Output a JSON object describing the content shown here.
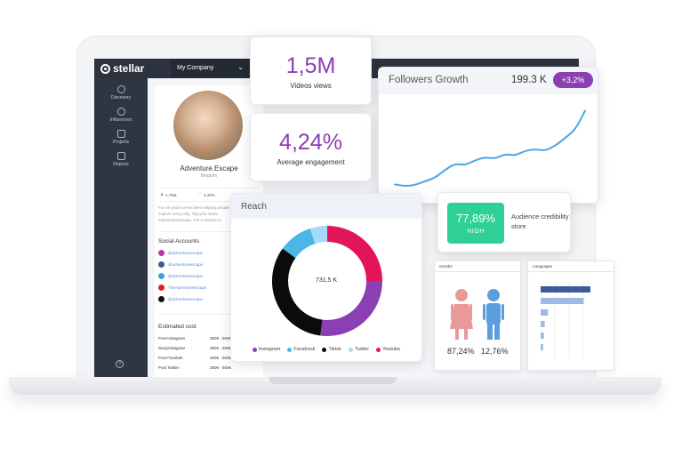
{
  "colors": {
    "accent": "#8a3fb3",
    "instagram": "#8a3fb3",
    "facebook": "#4ab7e8",
    "tiktok": "#0b0b0b",
    "twitter": "#a4daf8",
    "youtube": "#e2145a",
    "credibility": "#2ed096",
    "female": "#e89a9a",
    "male": "#5a9fdc",
    "languages_bar_dark": "#3b5b9a",
    "languages_bar_light": "#9fb9e8"
  },
  "app": {
    "brand": "stellar",
    "company": "My Company"
  },
  "sidebar": {
    "items": [
      {
        "label": "Discovery",
        "icon": "compass-icon"
      },
      {
        "label": "Influencers",
        "icon": "user-icon"
      },
      {
        "label": "Projects",
        "icon": "folder-icon"
      },
      {
        "label": "Reports",
        "icon": "chart-icon"
      }
    ],
    "help": "?"
  },
  "profile": {
    "name": "Adventure.Escape",
    "location": "Belgium",
    "stats": {
      "followers": "1.75M",
      "likes": "3.49%",
      "aqs": "AQS: 85,475"
    },
    "bio": "For 45 years we've been helping people explore every day. Tag your shots #adventureescape. For a chance to",
    "social_title": "Social Accounts",
    "social_accounts": [
      {
        "platform": "instagram",
        "handle": "@adventureescape"
      },
      {
        "platform": "facebook",
        "handle": "@adventureescape"
      },
      {
        "platform": "twitter",
        "handle": "@adventureescape"
      },
      {
        "platform": "youtube",
        "handle": "TheAdventureEscape"
      },
      {
        "platform": "tiktok",
        "handle": "@adventureescape"
      }
    ],
    "cost_title": "Estimated cost",
    "costs": [
      {
        "label": "Post Instagram",
        "value": "350€ - 500€"
      },
      {
        "label": "Storyinstagram",
        "value": "350€ - 500€"
      },
      {
        "label": "Post Facebok",
        "value": "350€ - 500€"
      },
      {
        "label": "Post Twitter",
        "value": "350€ - 500€"
      }
    ]
  },
  "kpis": {
    "videos_views": {
      "value": "1,5M",
      "label": "Videos views"
    },
    "engagement": {
      "value": "4,24%",
      "label": "Average engagement"
    }
  },
  "followers_growth": {
    "title": "Followers Growth",
    "value": "199.3 K",
    "change": "+3,2%"
  },
  "reach": {
    "title": "Reach",
    "center": "731,5 K",
    "legend": [
      "Instagram",
      "Facebook",
      "Tiktok",
      "Twitter",
      "Youtube"
    ]
  },
  "credibility": {
    "percent": "77,89%",
    "level": "HIGH",
    "label": "Audience credibility store"
  },
  "gender": {
    "title": "Gender",
    "female": "87,24%",
    "male": "12,76%"
  },
  "languages": {
    "title": "Languages"
  },
  "chart_data": [
    {
      "type": "line",
      "x": [
        1,
        2,
        3,
        4,
        5,
        6,
        7,
        8,
        9,
        10,
        11,
        12,
        13,
        14,
        15,
        16,
        17,
        18,
        19,
        20
      ],
      "values": [
        2,
        1,
        1.5,
        4,
        6,
        11,
        15,
        14,
        17,
        19,
        18,
        21,
        20,
        23,
        24,
        23,
        26,
        31,
        36,
        48
      ],
      "ylim": [
        0,
        50
      ],
      "grid": false
    },
    {
      "type": "pie",
      "categories": [
        "Instagram",
        "Facebook",
        "Tiktok",
        "Twitter",
        "Youtube"
      ],
      "values": [
        27,
        10,
        33,
        5,
        25
      ],
      "donut": true
    },
    {
      "type": "bar",
      "orientation": "horizontal",
      "values": [
        60,
        52,
        9,
        5,
        4,
        3
      ],
      "xlim": [
        0,
        60
      ]
    }
  ]
}
